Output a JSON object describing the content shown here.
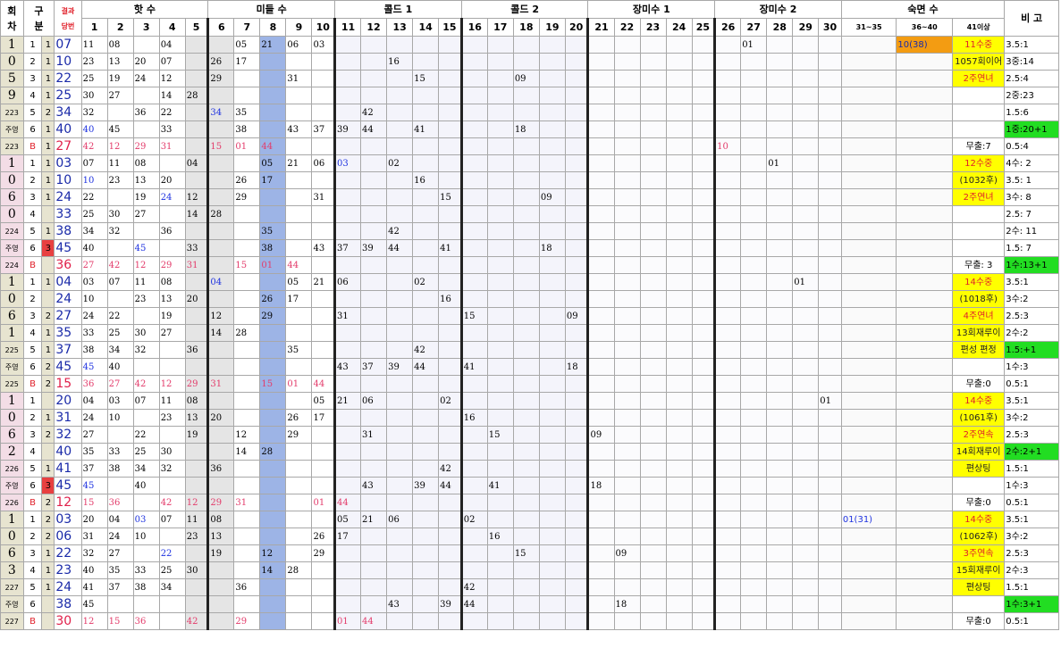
{
  "headers": {
    "round": [
      "회",
      "차"
    ],
    "gubun": [
      "구",
      "분"
    ],
    "result": [
      "결과",
      "당번"
    ],
    "groups": {
      "hot": "핫 수",
      "middle": "미들 수",
      "cold1": "콜드 1",
      "cold2": "콜드 2",
      "long1": "장미수 1",
      "long2": "장미수 2",
      "sleep": "숙면 수",
      "note": "비 고"
    },
    "numbers": [
      "1",
      "2",
      "3",
      "4",
      "5",
      "6",
      "7",
      "8",
      "9",
      "10",
      "11",
      "12",
      "13",
      "14",
      "15",
      "16",
      "17",
      "18",
      "19",
      "20",
      "21",
      "22",
      "23",
      "24",
      "25",
      "26",
      "27",
      "28",
      "29",
      "30"
    ],
    "sleep_ranges": [
      "31~35",
      "36~40",
      "41이상"
    ]
  },
  "blocks": [
    {
      "id": "1059",
      "sidechars": [
        "1",
        "0",
        "5",
        "9",
        "주영",
        "223"
      ],
      "rows": [
        {
          "a": "1",
          "b": "1",
          "r": "07",
          "cells": {
            "1": "11",
            "2": "08",
            "4": "04",
            "7": "05",
            "8": "21",
            "9": "06",
            "10": "03"
          },
          "s1": "",
          "s2": "",
          "s3": "10(38)",
          "n1": "11수중",
          "n2": "3.5:1",
          "l2": {
            "27": "01"
          }
        },
        {
          "a": "2",
          "b": "1",
          "r": "10",
          "cells": {
            "1": "23",
            "2": "13",
            "3": "20",
            "4": "07",
            "6": "26",
            "7": "17",
            "13": "16"
          },
          "n1": "1057회이어",
          "n2": "3중:14"
        },
        {
          "a": "3",
          "b": "1",
          "r": "22",
          "cells": {
            "1": "25",
            "2": "19",
            "3": "24",
            "4": "12",
            "6": "29",
            "9": "31",
            "14": "15",
            "18": "09"
          },
          "n1": "2주연녀",
          "n2": "2.5:4"
        },
        {
          "a": "4",
          "b": "1",
          "r": "25",
          "cells": {
            "1": "30",
            "2": "27",
            "4": "14",
            "5": "28"
          },
          "n1": "",
          "n2": "2중:23"
        },
        {
          "a": "5",
          "b": "2",
          "r": "34",
          "cells": {
            "1": "32",
            "3": "36",
            "4": "22",
            "6": "34",
            "7": "35",
            "12": "42"
          },
          "n1": "",
          "n2": "1.5:6"
        },
        {
          "a": "6",
          "b": "1",
          "r": "40",
          "cells": {
            "1": "40",
            "2": "45",
            "4": "33",
            "7": "38",
            "9": "43",
            "10": "37",
            "11": "39",
            "12": "44",
            "14": "41",
            "18": "18"
          },
          "n1": "",
          "n2": "1중:20+1"
        },
        {
          "a": "B",
          "b": "1",
          "r": "27",
          "cells": {
            "1": "42",
            "2": "12",
            "3": "29",
            "4": "31",
            "6": "15",
            "7": "01",
            "8": "44",
            "26": "10"
          },
          "n1": "무출:7",
          "n2": "0.5:4",
          "bonus": true
        }
      ]
    },
    {
      "id": "1060",
      "sidechars": [
        "1",
        "0",
        "6",
        "0",
        "주영",
        "224"
      ],
      "rows": [
        {
          "a": "1",
          "b": "1",
          "r": "03",
          "cells": {
            "1": "07",
            "2": "11",
            "3": "08",
            "5": "04",
            "8": "05",
            "9": "21",
            "10": "06",
            "11": "03",
            "13": "02",
            "28": "01"
          },
          "n1": "12수중",
          "n2": "4수: 2"
        },
        {
          "a": "2",
          "b": "1",
          "r": "10",
          "cells": {
            "1": "10",
            "2": "23",
            "3": "13",
            "4": "20",
            "7": "26",
            "8": "17",
            "14": "16"
          },
          "n1": "(1032후)",
          "n2": "3.5: 1"
        },
        {
          "a": "3",
          "b": "1",
          "r": "24",
          "cells": {
            "1": "22",
            "3": "19",
            "4": "24",
            "5": "12",
            "7": "29",
            "10": "31",
            "15": "15",
            "19": "09"
          },
          "n1": "2주연녀",
          "n2": "3수: 8"
        },
        {
          "a": "4",
          "b": "",
          "r": "33",
          "cells": {
            "1": "25",
            "2": "30",
            "3": "27",
            "5": "14",
            "6": "28"
          },
          "n1": "",
          "n2": "2.5: 7"
        },
        {
          "a": "5",
          "b": "1",
          "r": "38",
          "cells": {
            "1": "34",
            "2": "32",
            "4": "36",
            "8": "35",
            "13": "42"
          },
          "n1": "",
          "n2": "2수: 11"
        },
        {
          "a": "6",
          "b": "3",
          "r": "45",
          "cells": {
            "1": "40",
            "3": "45",
            "5": "33",
            "8": "38",
            "10": "43",
            "11": "37",
            "12": "39",
            "13": "44",
            "15": "41",
            "19": "18"
          },
          "n1": "",
          "n2": "1.5: 7"
        },
        {
          "a": "B",
          "b": "",
          "r": "36",
          "cells": {
            "1": "27",
            "2": "42",
            "3": "12",
            "4": "29",
            "5": "31",
            "7": "15",
            "8": "01",
            "9": "44"
          },
          "n1": "무출: 3",
          "n2": "1수:13+1",
          "bonus": true
        }
      ]
    },
    {
      "id": "1061",
      "sidechars": [
        "1",
        "0",
        "6",
        "1",
        "주영",
        "225"
      ],
      "rows": [
        {
          "a": "1",
          "b": "1",
          "r": "04",
          "cells": {
            "1": "03",
            "2": "07",
            "3": "11",
            "4": "08",
            "6": "04",
            "9": "05",
            "10": "21",
            "11": "06",
            "14": "02",
            "29": "01"
          },
          "n1": "14수중",
          "n2": "3.5:1"
        },
        {
          "a": "2",
          "b": "",
          "r": "24",
          "cells": {
            "1": "10",
            "3": "23",
            "4": "13",
            "5": "20",
            "8": "26",
            "9": "17",
            "15": "16"
          },
          "n1": "(1018후)",
          "n2": "3수:2"
        },
        {
          "a": "3",
          "b": "2",
          "r": "27",
          "cells": {
            "1": "24",
            "2": "22",
            "4": "19",
            "6": "12",
            "8": "29",
            "11": "31",
            "16": "15",
            "20": "09"
          },
          "n1": "4주연녀",
          "n2": "2.5:3"
        },
        {
          "a": "4",
          "b": "1",
          "r": "35",
          "cells": {
            "1": "33",
            "2": "25",
            "3": "30",
            "4": "27",
            "6": "14",
            "7": "28"
          },
          "n1": "13회재루이",
          "n2": "2수:2"
        },
        {
          "a": "5",
          "b": "1",
          "r": "37",
          "cells": {
            "1": "38",
            "2": "34",
            "3": "32",
            "5": "36",
            "9": "35",
            "14": "42"
          },
          "n1": "편성 편정",
          "n2": "1.5:+1"
        },
        {
          "a": "6",
          "b": "2",
          "r": "45",
          "cells": {
            "1": "45",
            "2": "40",
            "11": "43",
            "12": "37",
            "13": "39",
            "14": "44",
            "16": "41",
            "20": "18"
          },
          "n1": "",
          "n2": "1수:3"
        },
        {
          "a": "B",
          "b": "2",
          "r": "15",
          "cells": {
            "1": "36",
            "2": "27",
            "3": "42",
            "4": "12",
            "5": "29",
            "6": "31",
            "8": "15",
            "9": "01",
            "10": "44"
          },
          "n1": "무출:0",
          "n2": "0.5:1",
          "bonus": true
        }
      ]
    },
    {
      "id": "1062",
      "sidechars": [
        "1",
        "0",
        "6",
        "2",
        "주영",
        "226"
      ],
      "rows": [
        {
          "a": "1",
          "b": "",
          "r": "20",
          "cells": {
            "1": "04",
            "2": "03",
            "3": "07",
            "4": "11",
            "5": "08",
            "10": "05",
            "11": "21",
            "12": "06",
            "15": "02",
            "30": "01"
          },
          "n1": "14수중",
          "n2": "3.5:1"
        },
        {
          "a": "2",
          "b": "1",
          "r": "31",
          "cells": {
            "1": "24",
            "2": "10",
            "4": "23",
            "5": "13",
            "6": "20",
            "9": "26",
            "10": "17",
            "16": "16"
          },
          "n1": "(1061후)",
          "n2": "3수:2"
        },
        {
          "a": "3",
          "b": "2",
          "r": "32",
          "cells": {
            "1": "27",
            "3": "22",
            "5": "19",
            "7": "12",
            "9": "29",
            "12": "31",
            "17": "15",
            "21": "09"
          },
          "n1": "2주연속",
          "n2": "2.5:3"
        },
        {
          "a": "4",
          "b": "",
          "r": "40",
          "cells": {
            "1": "35",
            "2": "33",
            "3": "25",
            "4": "30",
            "7": "14",
            "8": "28"
          },
          "n1": "14회재루이",
          "n2": "2수:2+1"
        },
        {
          "a": "5",
          "b": "1",
          "r": "41",
          "cells": {
            "1": "37",
            "2": "38",
            "3": "34",
            "4": "32",
            "6": "36",
            "15": "42"
          },
          "n1": "편상팅",
          "n2": "1.5:1"
        },
        {
          "a": "6",
          "b": "3",
          "r": "45",
          "cells": {
            "1": "45",
            "3": "40",
            "12": "43",
            "14": "39",
            "15": "44",
            "17": "41",
            "21": "18"
          },
          "n1": "",
          "n2": "1수:3"
        },
        {
          "a": "B",
          "b": "2",
          "r": "12",
          "cells": {
            "1": "15",
            "2": "36",
            "4": "42",
            "5": "12",
            "6": "29",
            "7": "31",
            "10": "01",
            "11": "44"
          },
          "n1": "무출:0",
          "n2": "0.5:1",
          "bonus": true
        }
      ]
    },
    {
      "id": "1063",
      "sidechars": [
        "1",
        "0",
        "6",
        "3",
        "주영",
        "227"
      ],
      "rows": [
        {
          "a": "1",
          "b": "2",
          "r": "03",
          "cells": {
            "1": "20",
            "2": "04",
            "3": "03",
            "4": "07",
            "5": "11",
            "6": "08",
            "11": "05",
            "12": "21",
            "13": "06",
            "16": "02"
          },
          "s1": "01(31)",
          "n1": "14수중",
          "n2": "3.5:1"
        },
        {
          "a": "2",
          "b": "2",
          "r": "06",
          "cells": {
            "1": "31",
            "2": "24",
            "3": "10",
            "5": "23",
            "6": "13",
            "10": "26",
            "11": "17",
            "17": "16"
          },
          "n1": "(1062후)",
          "n2": "3수:2"
        },
        {
          "a": "3",
          "b": "1",
          "r": "22",
          "cells": {
            "1": "32",
            "2": "27",
            "4": "22",
            "6": "19",
            "8": "12",
            "10": "29",
            "18": "15",
            "22": "09"
          },
          "n1": "3주연속",
          "n2": "2.5:3"
        },
        {
          "a": "4",
          "b": "1",
          "r": "23",
          "cells": {
            "1": "40",
            "2": "35",
            "3": "33",
            "4": "25",
            "5": "30",
            "8": "14",
            "9": "28"
          },
          "n1": "15회재루이",
          "n2": "2수:3"
        },
        {
          "a": "5",
          "b": "1",
          "r": "24",
          "cells": {
            "1": "41",
            "2": "37",
            "3": "38",
            "4": "34",
            "7": "36",
            "16": "42"
          },
          "n1": "편상팅",
          "n2": "1.5:1"
        },
        {
          "a": "6",
          "b": "",
          "r": "38",
          "cells": {
            "1": "45",
            "13": "43",
            "15": "39",
            "16": "44",
            "22": "18"
          },
          "n1": "",
          "n2": "1수:3+1"
        },
        {
          "a": "B",
          "b": "",
          "r": "30",
          "cells": {
            "1": "12",
            "2": "15",
            "3": "36",
            "5": "42",
            "7": "29",
            "11": "01",
            "12": "44"
          },
          "n1": "무출:0",
          "n2": "0.5:1",
          "bonus": true
        }
      ]
    }
  ]
}
